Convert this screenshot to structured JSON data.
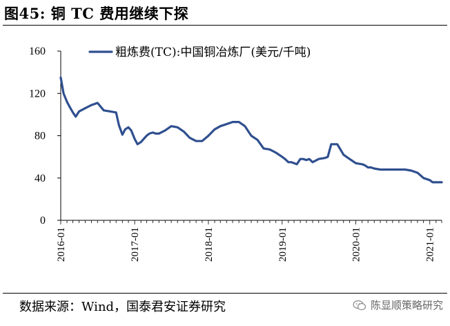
{
  "figure": {
    "title": "图45: 铜 TC 费用继续下探",
    "source": "数据来源：Wind，国泰君安证券研究",
    "watermark": "陈显顺策略研究",
    "line_color": "#2F4F8F"
  },
  "chart_data": {
    "type": "line",
    "title": "图45: 铜 TC 费用继续下探",
    "xlabel": "",
    "ylabel": "",
    "ylim": [
      0,
      160
    ],
    "yticks": [
      0,
      40,
      80,
      120,
      160
    ],
    "xlim": [
      "2016-01",
      "2021-03"
    ],
    "xticks": [
      "2016-01",
      "2017-01",
      "2018-01",
      "2019-01",
      "2020-01",
      "2021-01"
    ],
    "grid": false,
    "legend": "top",
    "series": [
      {
        "name": "粗炼费(TC):中国铜冶炼厂(美元/千吨)",
        "color": "#2F4F8F",
        "x": [
          "2016-01",
          "2016-01-15",
          "2016-02",
          "2016-02-15",
          "2016-03",
          "2016-03-15",
          "2016-04",
          "2016-05",
          "2016-06",
          "2016-07",
          "2016-08",
          "2016-09",
          "2016-10",
          "2016-10-15",
          "2016-11",
          "2016-11-15",
          "2016-12",
          "2016-12-15",
          "2017-01",
          "2017-01-15",
          "2017-02",
          "2017-03",
          "2017-03-15",
          "2017-04",
          "2017-04-15",
          "2017-05",
          "2017-06",
          "2017-07",
          "2017-08",
          "2017-09",
          "2017-10",
          "2017-11",
          "2017-12",
          "2018-01",
          "2018-02",
          "2018-03",
          "2018-04",
          "2018-05",
          "2018-06",
          "2018-07",
          "2018-08",
          "2018-09",
          "2018-10",
          "2018-11",
          "2018-12",
          "2019-01",
          "2019-01-15",
          "2019-02",
          "2019-02-15",
          "2019-03",
          "2019-03-15",
          "2019-04",
          "2019-04-15",
          "2019-05",
          "2019-05-15",
          "2019-06",
          "2019-07",
          "2019-08",
          "2019-08-15",
          "2019-09",
          "2019-10",
          "2019-11",
          "2019-12",
          "2020-01",
          "2020-02",
          "2020-02-15",
          "2020-03",
          "2020-03-15",
          "2020-04",
          "2020-05",
          "2020-06",
          "2020-07",
          "2020-08",
          "2020-09",
          "2020-10",
          "2020-11",
          "2020-12",
          "2021-01",
          "2021-01-15",
          "2021-02",
          "2021-02-15",
          "2021-03"
        ],
        "values": [
          135,
          120,
          112,
          107,
          102,
          98,
          103,
          106,
          109,
          111,
          104,
          103,
          102,
          90,
          81,
          86,
          88,
          85,
          77,
          72,
          74,
          80,
          82,
          83,
          82,
          82,
          85,
          89,
          88,
          84,
          78,
          75,
          75,
          80,
          86,
          89,
          91,
          93,
          93,
          89,
          80,
          76,
          68,
          67,
          64,
          60,
          58,
          55,
          55,
          54,
          53,
          58,
          58,
          57,
          58,
          55,
          58,
          59,
          60,
          72,
          72,
          62,
          58,
          54,
          53,
          52,
          50,
          50,
          49,
          48,
          48,
          48,
          48,
          48,
          47,
          45,
          40,
          38,
          36,
          36,
          36,
          36
        ]
      }
    ]
  }
}
